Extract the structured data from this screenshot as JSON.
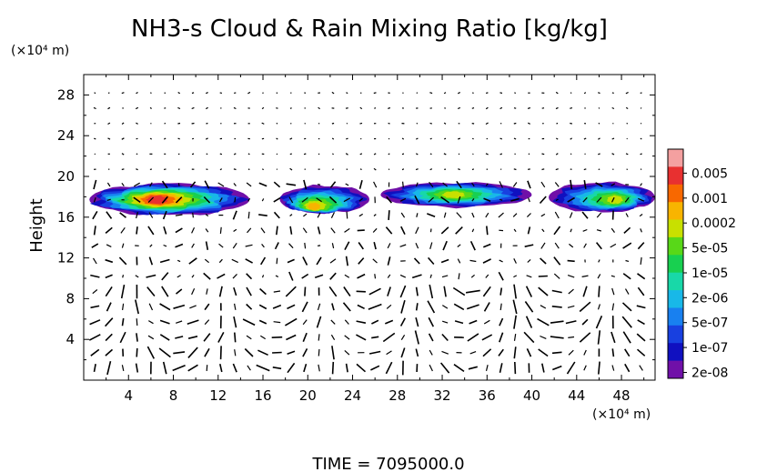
{
  "chart_data": {
    "type": "heatmap",
    "title": "NH3-s Cloud & Rain Mixing Ratio [kg/kg]",
    "ylabel": "Height",
    "y_unit": "(×10⁴ m)",
    "x_unit": "(×10⁴ m)",
    "footer": "TIME  =  7095000.0",
    "xlim": [
      0,
      51
    ],
    "ylim": [
      0,
      30
    ],
    "x_ticks": [
      4,
      8,
      12,
      16,
      20,
      24,
      28,
      32,
      36,
      40,
      44,
      48
    ],
    "y_ticks": [
      4,
      8,
      12,
      16,
      20,
      24,
      28
    ],
    "colorbar": {
      "labels": [
        "0.005",
        "0.001",
        "0.0002",
        "5e-05",
        "1e-05",
        "2e-06",
        "5e-07",
        "1e-07",
        "2e-08"
      ],
      "colors": [
        "#f4a0a0",
        "#e83030",
        "#f86800",
        "#f8b400",
        "#c8e000",
        "#58d818",
        "#18d050",
        "#18d8a8",
        "#18b8e8",
        "#1880f0",
        "#1840e0",
        "#1010c0",
        "#7010a8"
      ]
    },
    "cloud_bands": [
      {
        "x_start": 0.5,
        "x_end": 14.8,
        "y_bottom": 16.2,
        "y_top": 19.3,
        "peak_x": 6.5,
        "peak_y": 17.7,
        "peak_value": "0.001"
      },
      {
        "x_start": 17.5,
        "x_end": 25.5,
        "y_bottom": 16.4,
        "y_top": 19.1,
        "peak_x": 20.5,
        "peak_y": 17.0,
        "peak_value": "0.0002"
      },
      {
        "x_start": 26.5,
        "x_end": 40.0,
        "y_bottom": 17.0,
        "y_top": 19.4,
        "peak_x": 33.0,
        "peak_y": 18.2,
        "peak_value": "5e-05"
      },
      {
        "x_start": 41.5,
        "x_end": 51.0,
        "y_bottom": 16.5,
        "y_top": 19.4,
        "peak_x": 47.5,
        "peak_y": 17.7,
        "peak_value": "5e-05"
      }
    ]
  }
}
